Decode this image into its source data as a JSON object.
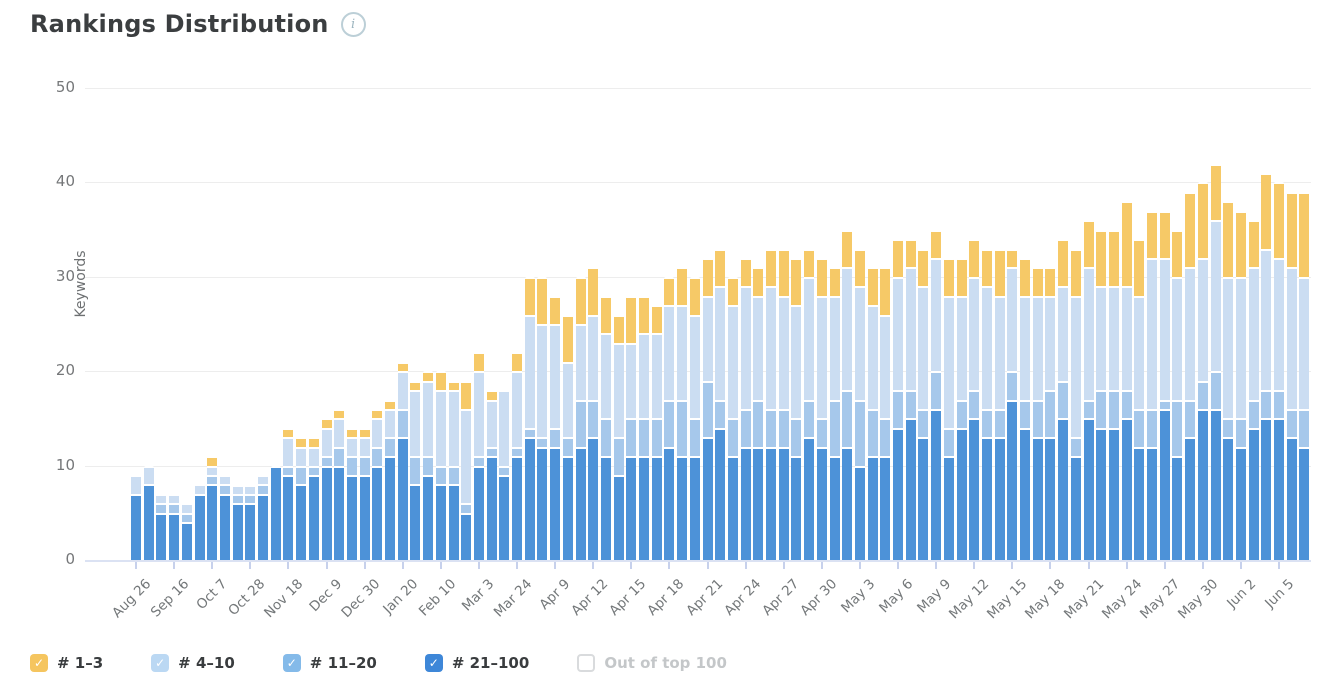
{
  "page": {
    "title": "Rankings Distribution"
  },
  "header": {
    "info_icon": "i"
  },
  "legend": {
    "items": [
      {
        "label": "# 1–3",
        "checked": true,
        "color": "#F5C55F"
      },
      {
        "label": "# 4–10",
        "checked": true,
        "color": "#BBD8F3"
      },
      {
        "label": "# 11–20",
        "checked": true,
        "color": "#84BAE9"
      },
      {
        "label": "# 21–100",
        "checked": true,
        "color": "#3E87D8"
      },
      {
        "label": "Out of top 100",
        "checked": false,
        "color": "#FFFFFF"
      }
    ]
  },
  "colors": {
    "gridline": "#ededed",
    "axis_line": "#dbe2f3",
    "tick_mark": "#c7d1ec",
    "axis_text": "#757779"
  },
  "chart_data": {
    "type": "bar",
    "variant": "stacked",
    "title": "Rankings Distribution",
    "xlabel": "",
    "ylabel": "Keywords",
    "ylim": [
      0,
      50
    ],
    "yticks": [
      0,
      10,
      20,
      30,
      40,
      50
    ],
    "grid": true,
    "legend_position": "bottom",
    "tick_interval": 3,
    "x_tick_labels": [
      "Aug 26",
      "Sep 16",
      "Oct 7",
      "Oct 28",
      "Nov 18",
      "Dec 9",
      "Dec 30",
      "Jan 20",
      "Feb 10",
      "Mar 3",
      "Mar 24",
      "Apr 9",
      "Apr 12",
      "Apr 15",
      "Apr 18",
      "Apr 21",
      "Apr 24",
      "Apr 27",
      "Apr 30",
      "May 3",
      "May 6",
      "May 9",
      "May 12",
      "May 15",
      "May 18",
      "May 21",
      "May 24",
      "May 27",
      "May 30",
      "Jun 2",
      "Jun 5"
    ],
    "categories": [
      "Aug 26",
      "Sep 2",
      "Sep 9",
      "Sep 16",
      "Sep 23",
      "Sep 30",
      "Oct 7",
      "Oct 14",
      "Oct 21",
      "Oct 28",
      "Nov 4",
      "Nov 11",
      "Nov 18",
      "Nov 25",
      "Dec 2",
      "Dec 9",
      "Dec 16",
      "Dec 23",
      "Dec 30",
      "Jan 6",
      "Jan 13",
      "Jan 20",
      "Jan 27",
      "Feb 3",
      "Feb 10",
      "Feb 17",
      "Feb 24",
      "Mar 3",
      "Mar 10",
      "Mar 17",
      "Mar 24",
      "Mar 31",
      "Apr 7",
      "Apr 9",
      "Apr 10",
      "Apr 11",
      "Apr 12",
      "Apr 13",
      "Apr 14",
      "Apr 15",
      "Apr 16",
      "Apr 17",
      "Apr 18",
      "Apr 19",
      "Apr 20",
      "Apr 21",
      "Apr 22",
      "Apr 23",
      "Apr 24",
      "Apr 25",
      "Apr 26",
      "Apr 27",
      "Apr 28",
      "Apr 29",
      "Apr 30",
      "May 1",
      "May 2",
      "May 3",
      "May 4",
      "May 5",
      "May 6",
      "May 7",
      "May 8",
      "May 9",
      "May 10",
      "May 11",
      "May 12",
      "May 13",
      "May 14",
      "May 15",
      "May 16",
      "May 17",
      "May 18",
      "May 19",
      "May 20",
      "May 21",
      "May 22",
      "May 23",
      "May 24",
      "May 25",
      "May 26",
      "May 27",
      "May 28",
      "May 29",
      "May 30",
      "May 31",
      "Jun 1",
      "Jun 2",
      "Jun 3",
      "Jun 4",
      "Jun 5",
      "Jun 6",
      "Jun 7"
    ],
    "series": [
      {
        "name": "# 21–100",
        "color": "#4D92D8",
        "values": [
          7,
          8,
          5,
          5,
          4,
          7,
          8,
          7,
          6,
          6,
          7,
          10,
          9,
          8,
          9,
          10,
          10,
          9,
          9,
          10,
          11,
          13,
          8,
          9,
          8,
          8,
          5,
          10,
          11,
          9,
          11,
          13,
          12,
          12,
          11,
          12,
          13,
          11,
          9,
          11,
          11,
          11,
          12,
          11,
          11,
          13,
          14,
          11,
          12,
          12,
          12,
          12,
          11,
          13,
          12,
          11,
          12,
          10,
          11,
          11,
          14,
          15,
          13,
          16,
          11,
          14,
          15,
          13,
          13,
          17,
          14,
          13,
          13,
          15,
          11,
          15,
          14,
          14,
          15,
          12,
          12,
          16,
          11,
          13,
          16,
          16,
          13,
          12,
          14,
          15,
          15,
          13,
          12
        ]
      },
      {
        "name": "# 11–20",
        "color": "#A6C8EB",
        "values": [
          0,
          0,
          1,
          1,
          1,
          0,
          1,
          1,
          1,
          1,
          1,
          0,
          1,
          2,
          1,
          1,
          2,
          2,
          2,
          2,
          2,
          3,
          3,
          2,
          2,
          2,
          1,
          1,
          1,
          1,
          1,
          1,
          1,
          2,
          2,
          5,
          4,
          4,
          4,
          4,
          4,
          4,
          5,
          6,
          4,
          6,
          3,
          4,
          4,
          5,
          4,
          4,
          4,
          4,
          3,
          6,
          6,
          7,
          5,
          4,
          4,
          3,
          3,
          4,
          3,
          3,
          3,
          3,
          3,
          3,
          3,
          4,
          5,
          4,
          2,
          2,
          4,
          4,
          3,
          4,
          4,
          1,
          6,
          4,
          3,
          4,
          2,
          3,
          3,
          3,
          3,
          3,
          4
        ]
      },
      {
        "name": "# 4–10",
        "color": "#CBDDF2",
        "values": [
          2,
          2,
          1,
          1,
          1,
          1,
          1,
          1,
          1,
          1,
          1,
          0,
          3,
          2,
          2,
          3,
          3,
          2,
          2,
          3,
          3,
          4,
          7,
          8,
          8,
          8,
          10,
          9,
          5,
          8,
          8,
          12,
          12,
          11,
          8,
          8,
          9,
          9,
          10,
          8,
          9,
          9,
          10,
          10,
          11,
          9,
          12,
          12,
          13,
          11,
          13,
          12,
          12,
          13,
          13,
          11,
          13,
          12,
          11,
          11,
          12,
          13,
          13,
          12,
          14,
          11,
          12,
          13,
          12,
          11,
          11,
          11,
          10,
          10,
          15,
          14,
          11,
          11,
          11,
          12,
          16,
          15,
          13,
          14,
          13,
          16,
          15,
          15,
          14,
          15,
          14,
          15,
          14
        ]
      },
      {
        "name": "# 1–3",
        "color": "#F6C967",
        "values": [
          0,
          0,
          0,
          0,
          0,
          0,
          1,
          0,
          0,
          0,
          0,
          0,
          1,
          1,
          1,
          1,
          1,
          1,
          1,
          1,
          1,
          1,
          1,
          1,
          2,
          1,
          3,
          2,
          1,
          0,
          2,
          4,
          5,
          3,
          5,
          5,
          5,
          4,
          3,
          5,
          4,
          3,
          3,
          4,
          4,
          4,
          4,
          3,
          3,
          3,
          4,
          5,
          5,
          3,
          4,
          3,
          4,
          4,
          4,
          5,
          4,
          3,
          4,
          3,
          4,
          4,
          4,
          4,
          5,
          2,
          4,
          3,
          3,
          5,
          5,
          5,
          6,
          6,
          9,
          6,
          5,
          5,
          5,
          8,
          8,
          6,
          8,
          7,
          5,
          8,
          8,
          8,
          9
        ]
      }
    ]
  }
}
